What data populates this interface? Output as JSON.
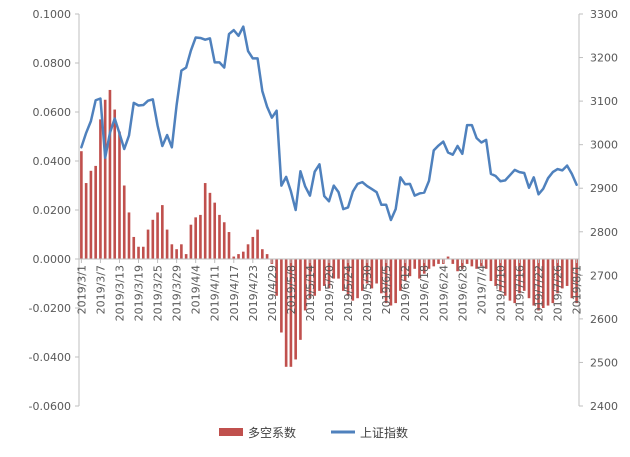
{
  "chart_data": {
    "type": "bar+line",
    "title": "",
    "categories": [
      "2019/3/1",
      "2019/3/4",
      "2019/3/5",
      "2019/3/6",
      "2019/3/7",
      "2019/3/8",
      "2019/3/11",
      "2019/3/12",
      "2019/3/13",
      "2019/3/14",
      "2019/3/15",
      "2019/3/18",
      "2019/3/19",
      "2019/3/20",
      "2019/3/21",
      "2019/3/22",
      "2019/3/25",
      "2019/3/26",
      "2019/3/27",
      "2019/3/28",
      "2019/3/29",
      "2019/4/1",
      "2019/4/2",
      "2019/4/3",
      "2019/4/4",
      "2019/4/8",
      "2019/4/9",
      "2019/4/10",
      "2019/4/11",
      "2019/4/12",
      "2019/4/15",
      "2019/4/16",
      "2019/4/17",
      "2019/4/18",
      "2019/4/19",
      "2019/4/22",
      "2019/4/23",
      "2019/4/24",
      "2019/4/25",
      "2019/4/26",
      "2019/4/29",
      "2019/4/30",
      "2019/5/6",
      "2019/5/7",
      "2019/5/8",
      "2019/5/9",
      "2019/5/10",
      "2019/5/13",
      "2019/5/14",
      "2019/5/15",
      "2019/5/16",
      "2019/5/17",
      "2019/5/20",
      "2019/5/21",
      "2019/5/22",
      "2019/5/23",
      "2019/5/24",
      "2019/5/27",
      "2019/5/28",
      "2019/5/29",
      "2019/5/30",
      "2019/5/31",
      "2019/6/3",
      "2019/6/4",
      "2019/6/5",
      "2019/6/6",
      "2019/6/10",
      "2019/6/11",
      "2019/6/12",
      "2019/6/13",
      "2019/6/14",
      "2019/6/17",
      "2019/6/18",
      "2019/6/19",
      "2019/6/20",
      "2019/6/21",
      "2019/6/24",
      "2019/6/25",
      "2019/6/26",
      "2019/6/27",
      "2019/6/28",
      "2019/7/1",
      "2019/7/2",
      "2019/7/3",
      "2019/7/4",
      "2019/7/5",
      "2019/7/8",
      "2019/7/9",
      "2019/7/10",
      "2019/7/11",
      "2019/7/12",
      "2019/7/15",
      "2019/7/16",
      "2019/7/17",
      "2019/7/18",
      "2019/7/19",
      "2019/7/22",
      "2019/7/23",
      "2019/7/24",
      "2019/7/25",
      "2019/7/26",
      "2019/7/29",
      "2019/7/30",
      "2019/7/31",
      "2019/8/1"
    ],
    "visible_x_labels": [
      "2019/3/1",
      "2019/3/7",
      "2019/3/13",
      "2019/3/19",
      "2019/3/25",
      "2019/3/29",
      "2019/4/4",
      "2019/4/11",
      "2019/4/17",
      "2019/4/23",
      "2019/4/29",
      "2019/5/8",
      "2019/5/14",
      "2019/5/20",
      "2019/5/24",
      "2019/5/30",
      "2019/6/5",
      "2019/6/12",
      "2019/6/18",
      "2019/6/24",
      "2019/6/28",
      "2019/7/4",
      "2019/7/10",
      "2019/7/16",
      "2019/7/22",
      "2019/7/26",
      "2019/8/1"
    ],
    "series": [
      {
        "name": "多空系数",
        "type": "bar",
        "axis": "left",
        "color": "#C0504D",
        "values": [
          0.044,
          0.031,
          0.036,
          0.038,
          0.057,
          0.065,
          0.069,
          0.061,
          0.052,
          0.03,
          0.019,
          0.009,
          0.005,
          0.005,
          0.012,
          0.016,
          0.019,
          0.022,
          0.012,
          0.006,
          0.004,
          0.006,
          0.002,
          0.014,
          0.017,
          0.018,
          0.031,
          0.027,
          0.023,
          0.018,
          0.015,
          0.011,
          0.001,
          0.002,
          0.003,
          0.006,
          0.009,
          0.012,
          0.004,
          0.002,
          -0.002,
          -0.015,
          -0.03,
          -0.044,
          -0.044,
          -0.041,
          -0.033,
          -0.021,
          -0.016,
          -0.015,
          -0.013,
          -0.011,
          -0.012,
          -0.008,
          -0.008,
          -0.013,
          -0.015,
          -0.017,
          -0.016,
          -0.013,
          -0.01,
          -0.012,
          -0.01,
          -0.014,
          -0.018,
          -0.019,
          -0.018,
          -0.013,
          -0.009,
          -0.007,
          -0.004,
          -0.008,
          -0.006,
          -0.004,
          -0.003,
          -0.002,
          -0.002,
          0.001,
          -0.002,
          -0.005,
          -0.004,
          -0.002,
          -0.003,
          -0.004,
          -0.003,
          -0.004,
          -0.009,
          -0.011,
          -0.013,
          -0.015,
          -0.017,
          -0.018,
          -0.014,
          -0.013,
          -0.016,
          -0.019,
          -0.021,
          -0.02,
          -0.019,
          -0.018,
          -0.014,
          -0.012,
          -0.011,
          -0.016,
          -0.018
        ]
      },
      {
        "name": "上证指数",
        "type": "line",
        "axis": "right",
        "color": "#4F81BD",
        "values": [
          2994,
          3027,
          3054,
          3102,
          3106,
          2970,
          3027,
          3060,
          3026,
          2990,
          3021,
          3096,
          3090,
          3091,
          3101,
          3104,
          3044,
          2997,
          3022,
          2994,
          3091,
          3170,
          3177,
          3216,
          3246,
          3245,
          3241,
          3244,
          3189,
          3189,
          3177,
          3254,
          3263,
          3250,
          3271,
          3215,
          3198,
          3198,
          3123,
          3087,
          3062,
          3078,
          2906,
          2926,
          2893,
          2850,
          2939,
          2904,
          2883,
          2938,
          2955,
          2882,
          2870,
          2906,
          2891,
          2852,
          2856,
          2892,
          2910,
          2914,
          2905,
          2898,
          2891,
          2862,
          2862,
          2827,
          2852,
          2925,
          2909,
          2910,
          2883,
          2888,
          2890,
          2917,
          2987,
          2998,
          3007,
          2982,
          2977,
          2997,
          2979,
          3045,
          3045,
          3015,
          3005,
          3011,
          2933,
          2928,
          2916,
          2918,
          2930,
          2942,
          2937,
          2935,
          2901,
          2925,
          2886,
          2899,
          2923,
          2937,
          2944,
          2941,
          2952,
          2933,
          2908
        ]
      }
    ],
    "y_left": {
      "min": -0.06,
      "max": 0.1,
      "step": 0.02,
      "tick_labels": [
        "-0.0600",
        "-0.0400",
        "-0.0200",
        "0.0000",
        "0.0200",
        "0.0400",
        "0.0600",
        "0.0800",
        "0.1000"
      ]
    },
    "y_right": {
      "min": 2400,
      "max": 3300,
      "step": 100,
      "tick_labels": [
        "2400",
        "2500",
        "2600",
        "2700",
        "2800",
        "2900",
        "3000",
        "3100",
        "3200",
        "3300"
      ]
    },
    "grid": false,
    "legend": {
      "position": "bottom",
      "items": [
        {
          "label": "多空系数",
          "color": "#C0504D",
          "shape": "bar"
        },
        {
          "label": "上证指数",
          "color": "#4F81BD",
          "shape": "line"
        }
      ]
    }
  }
}
